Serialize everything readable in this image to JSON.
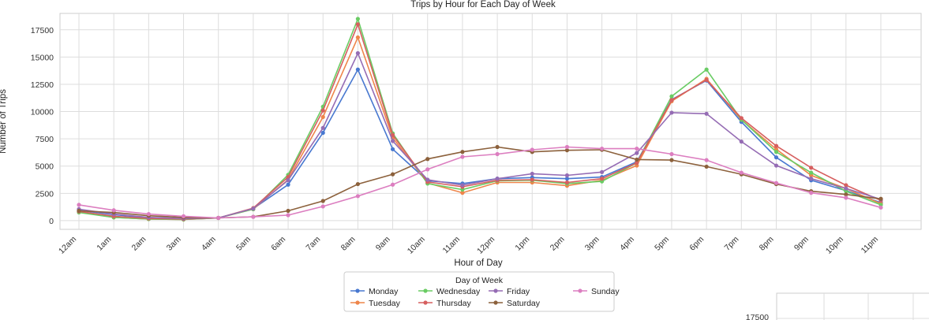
{
  "chart_data": {
    "type": "line",
    "title": "Trips by Hour for Each Day of Week",
    "xlabel": "Hour of Day",
    "ylabel": "Number of Trips",
    "categories": [
      "12am",
      "1am",
      "2am",
      "3am",
      "4am",
      "5am",
      "6am",
      "7am",
      "8am",
      "9am",
      "10am",
      "11am",
      "12pm",
      "1pm",
      "2pm",
      "3pm",
      "4pm",
      "5pm",
      "6pm",
      "7pm",
      "8pm",
      "9pm",
      "10pm",
      "11pm"
    ],
    "yticks": [
      0,
      2500,
      5000,
      7500,
      10000,
      12500,
      15000,
      17500
    ],
    "ylim": [
      -800,
      19000
    ],
    "grid": true,
    "legend": {
      "title": "Day of Week",
      "placement": "below-center"
    },
    "series": [
      {
        "name": "Monday",
        "color": "#4878d0",
        "values": [
          950,
          550,
          250,
          150,
          250,
          1100,
          3300,
          8050,
          13850,
          6550,
          3650,
          3400,
          3850,
          3950,
          3850,
          4000,
          5400,
          11100,
          12850,
          9050,
          5800,
          3700,
          2750,
          1650
        ]
      },
      {
        "name": "Tuesday",
        "color": "#ee854a",
        "values": [
          800,
          300,
          150,
          100,
          250,
          1050,
          3750,
          9500,
          16800,
          7600,
          3450,
          2550,
          3500,
          3500,
          3200,
          3700,
          5050,
          10950,
          13000,
          9250,
          6550,
          4150,
          2950,
          1550
        ]
      },
      {
        "name": "Wednesday",
        "color": "#6acc64",
        "values": [
          750,
          300,
          150,
          100,
          250,
          1050,
          4200,
          10450,
          18500,
          8000,
          3400,
          2850,
          3650,
          3700,
          3400,
          3600,
          5300,
          11400,
          13850,
          9250,
          6300,
          4400,
          2700,
          1450
        ]
      },
      {
        "name": "Thursday",
        "color": "#d65f5f",
        "values": [
          850,
          400,
          200,
          150,
          250,
          1150,
          4000,
          10100,
          18000,
          7850,
          3550,
          3100,
          3700,
          3750,
          3500,
          3850,
          5300,
          11050,
          12900,
          9400,
          6850,
          4850,
          3250,
          1850
        ]
      },
      {
        "name": "Friday",
        "color": "#956cb4",
        "values": [
          1050,
          600,
          300,
          200,
          250,
          1100,
          3700,
          8500,
          15350,
          7300,
          3750,
          3250,
          3850,
          4300,
          4150,
          4450,
          6200,
          9900,
          9800,
          7250,
          5050,
          3850,
          2950,
          1950
        ]
      },
      {
        "name": "Saturday",
        "color": "#8c613c",
        "values": [
          900,
          750,
          450,
          300,
          250,
          350,
          900,
          1800,
          3350,
          4250,
          5650,
          6300,
          6750,
          6300,
          6450,
          6500,
          5600,
          5550,
          4950,
          4250,
          3350,
          2700,
          2400,
          2000
        ]
      },
      {
        "name": "Sunday",
        "color": "#dc7ec0",
        "values": [
          1450,
          950,
          600,
          400,
          250,
          350,
          500,
          1300,
          2250,
          3300,
          4700,
          5850,
          6100,
          6500,
          6750,
          6600,
          6600,
          6100,
          5550,
          4400,
          3450,
          2550,
          2100,
          1200
        ]
      }
    ]
  },
  "inset_chart": {
    "ytick": "17500"
  }
}
